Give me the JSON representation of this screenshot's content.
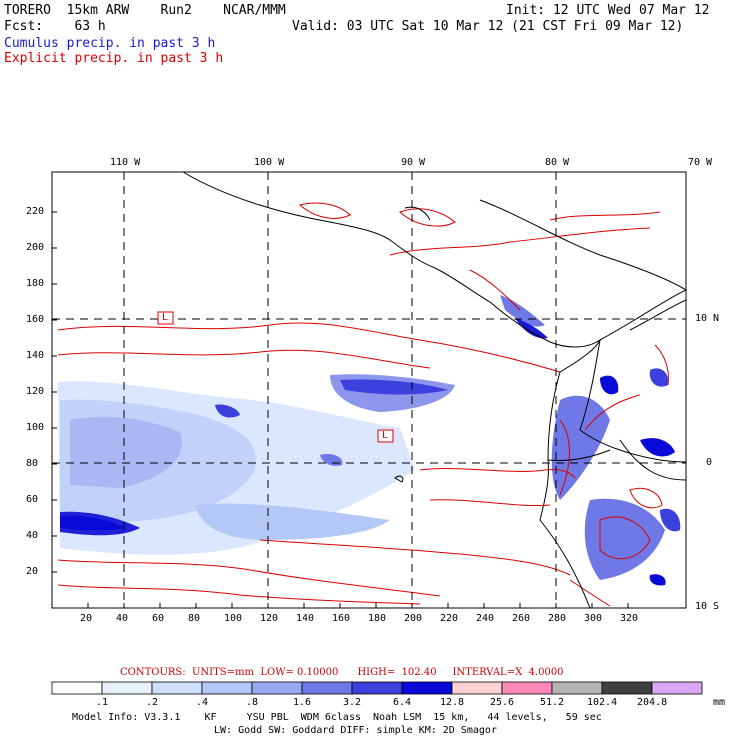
{
  "header": {
    "model": "TORERO  15km ARW    Run2    NCAR/MMM",
    "init": "Init: 12 UTC Wed 07 Mar 12",
    "fcst": "Fcst:    63 h",
    "valid": "Valid: 03 UTC Sat 10 Mar 12 (21 CST Fri 09 Mar 12)"
  },
  "legend_lines": {
    "cumulus": "Cumulus precip. in past 3 h",
    "explicit": "Explicit precip. in past 3 h",
    "cumulus_color": "#1a1acc",
    "explicit_color": "#dd0000"
  },
  "map": {
    "lon_labels": [
      "110 W",
      "100 W",
      "90 W",
      "80 W",
      "70 W"
    ],
    "lat_labels": [
      "10 N",
      "0",
      "10 S"
    ],
    "x_ticks": [
      "20",
      "40",
      "60",
      "80",
      "100",
      "120",
      "140",
      "160",
      "180",
      "200",
      "220",
      "240",
      "260",
      "280",
      "300",
      "320"
    ],
    "y_ticks": [
      "20",
      "40",
      "60",
      "80",
      "100",
      "120",
      "140",
      "160",
      "180",
      "200",
      "220"
    ],
    "low_markers": [
      "L",
      "L"
    ]
  },
  "contour_info": {
    "label": "CONTOURS:  UNITS=mm  LOW= 0.10000      HIGH=  102.40     INTERVAL=X  4.0000"
  },
  "colorbar": {
    "unit": "mm",
    "labels": [
      ".1",
      ".2",
      ".4",
      ".8",
      "1.6",
      "3.2",
      "6.4",
      "12.8",
      "25.6",
      "51.2",
      "102.4",
      "204.8"
    ],
    "colors": [
      "#ffffff",
      "#e8f0ff",
      "#cfe0ff",
      "#b4c8f8",
      "#98aaf0",
      "#6e78e6",
      "#3c40dc",
      "#0a0ad8",
      "#ffd0d0",
      "#ff88b8",
      "#b4b4b4",
      "#404040",
      "#d8a8f4"
    ]
  },
  "footer": {
    "line1": "Model Info: V3.3.1    KF     YSU PBL  WDM 6class  Noah LSM  15 km,   44 levels,   59 sec",
    "line2": "LW: Godd SW: Goddard DIFF: simple KM: 2D Smagor"
  }
}
